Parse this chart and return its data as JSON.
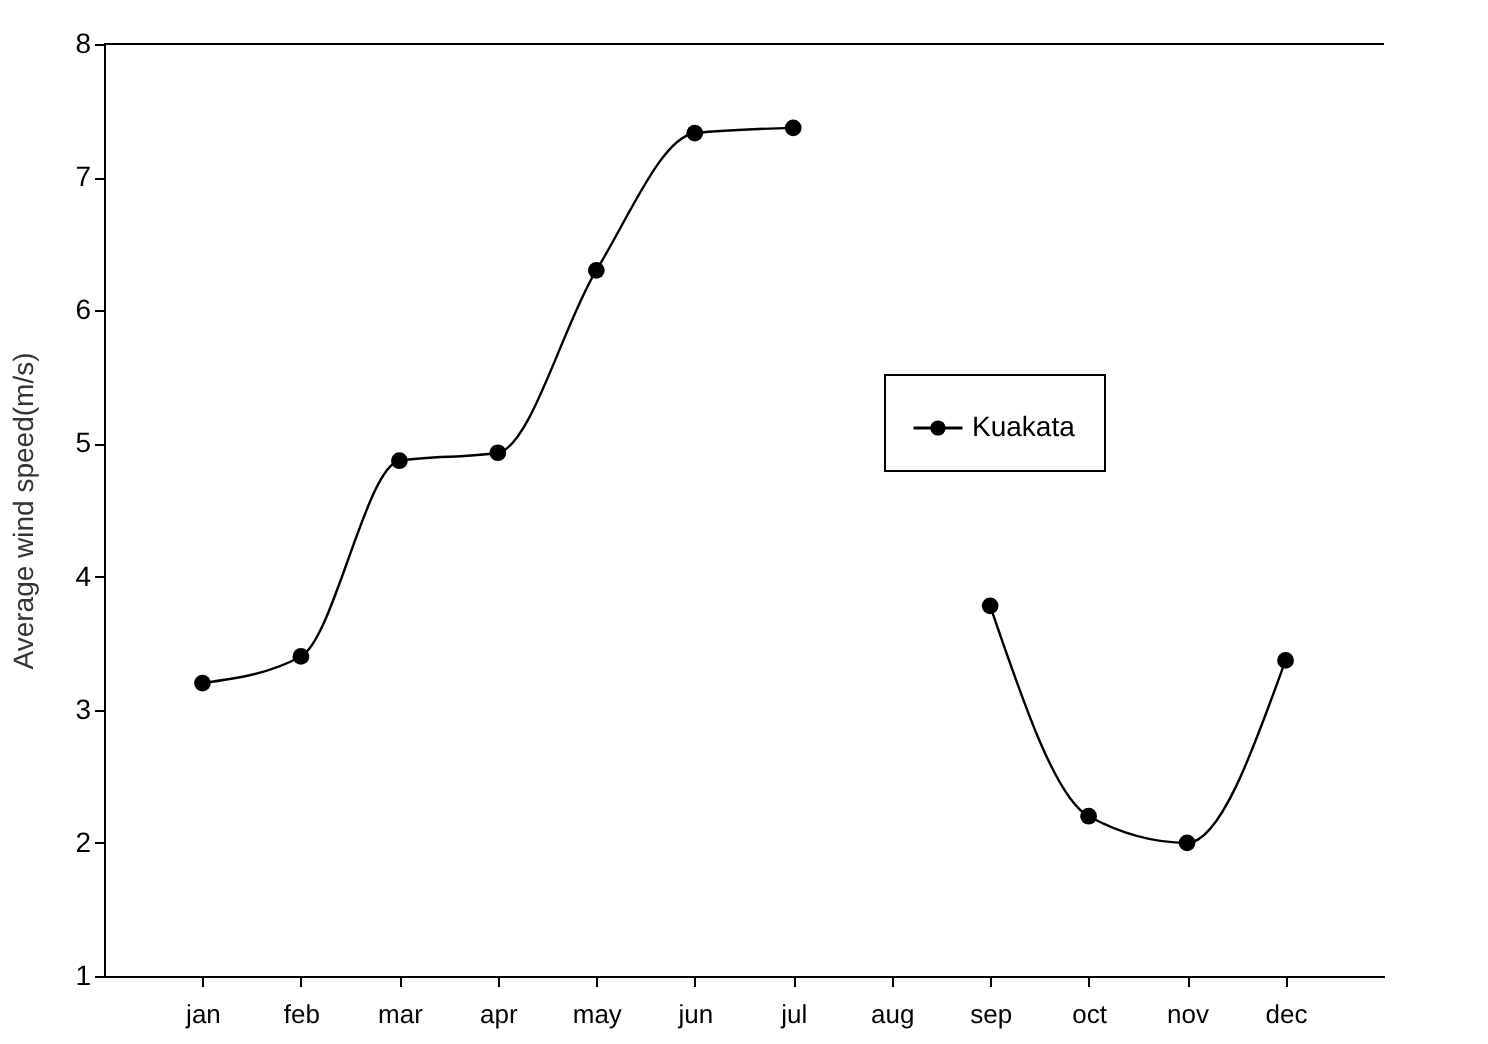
{
  "chart_data": {
    "type": "line",
    "ylabel": "Average wind speed(m/s)",
    "categories": [
      "jan",
      "feb",
      "mar",
      "apr",
      "may",
      "jun",
      "jul",
      "aug",
      "sep",
      "oct",
      "nov",
      "dec"
    ],
    "series": [
      {
        "name": "Kuakata",
        "color": "#000000",
        "values": [
          3.2,
          3.4,
          4.87,
          4.93,
          6.3,
          7.33,
          7.37,
          null,
          3.78,
          2.2,
          2.0,
          3.37
        ]
      }
    ],
    "ylim": [
      1,
      8
    ],
    "yticks": [
      1,
      2,
      3,
      4,
      5,
      6,
      7,
      8
    ],
    "grid": false,
    "legend": "right",
    "marker": "circle",
    "line_style": "solid"
  }
}
